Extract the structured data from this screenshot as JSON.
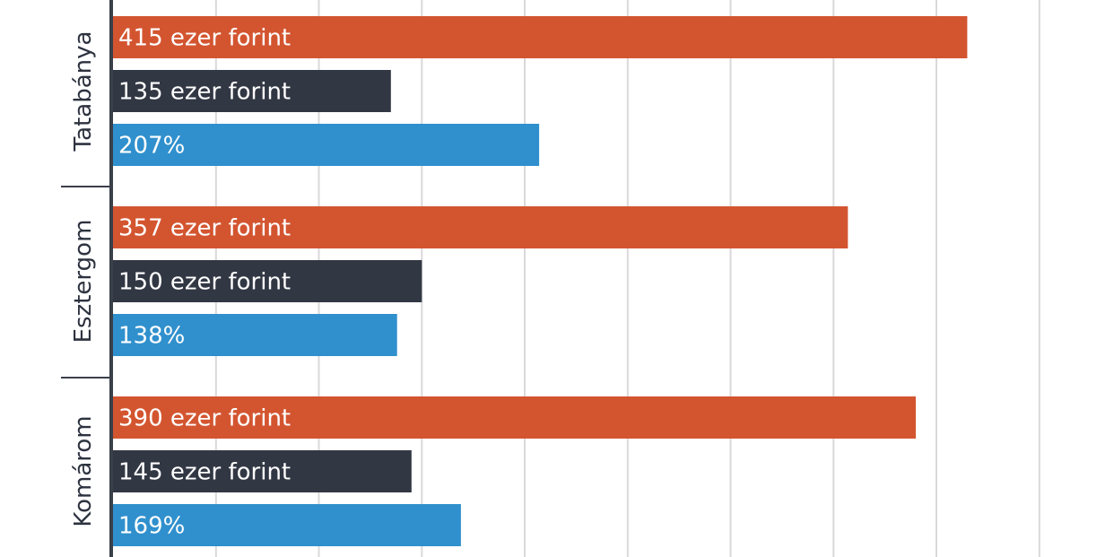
{
  "colors": {
    "background": "#ffffff",
    "grid": "#d9d9d9",
    "axis": "#3a3f4a",
    "series_colors": [
      "#d35530",
      "#323744",
      "#3090cd"
    ]
  },
  "chart_data": {
    "type": "bar",
    "orientation": "horizontal",
    "grid": true,
    "xlim": [
      0,
      4.5
    ],
    "groups": [
      {
        "label": "Tatabánya",
        "bars": [
          {
            "value": 4.15,
            "label": "415 ezer forint"
          },
          {
            "value": 1.35,
            "label": "135 ezer forint"
          },
          {
            "value": 2.07,
            "label": "207%"
          }
        ]
      },
      {
        "label": "Esztergom",
        "bars": [
          {
            "value": 3.57,
            "label": "357 ezer forint"
          },
          {
            "value": 1.5,
            "label": "150 ezer forint"
          },
          {
            "value": 1.38,
            "label": "138%"
          }
        ]
      },
      {
        "label": "Komárom",
        "bars": [
          {
            "value": 3.9,
            "label": "390 ezer forint"
          },
          {
            "value": 1.45,
            "label": "145 ezer forint"
          },
          {
            "value": 1.69,
            "label": "169%"
          }
        ]
      }
    ]
  }
}
